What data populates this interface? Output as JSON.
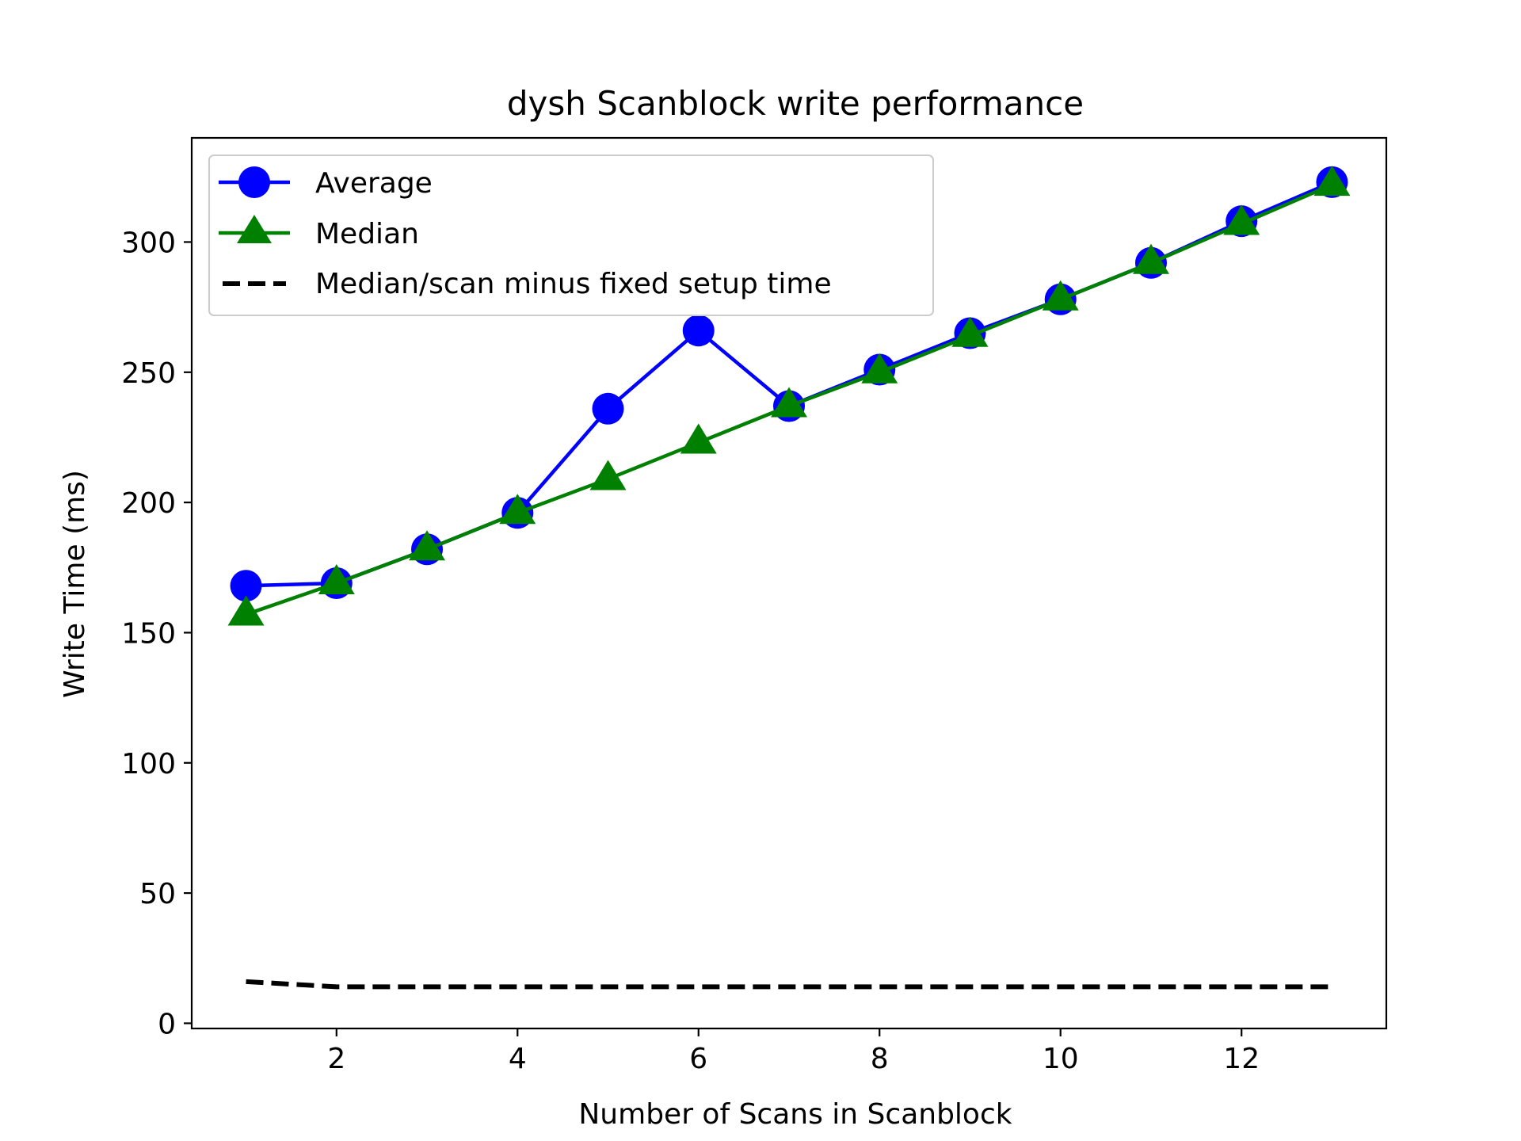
{
  "chart_data": {
    "type": "line",
    "title": "dysh Scanblock write performance",
    "xlabel": "Number of Scans in Scanblock",
    "ylabel": "Write Time (ms)",
    "xlim": [
      0.4,
      13.6
    ],
    "ylim": [
      -2,
      340
    ],
    "xticks": [
      2,
      4,
      6,
      8,
      10,
      12
    ],
    "yticks": [
      0,
      50,
      100,
      150,
      200,
      250,
      300
    ],
    "grid": false,
    "legend_position": "top-left",
    "x": [
      1,
      2,
      3,
      4,
      5,
      6,
      7,
      8,
      9,
      10,
      11,
      12,
      13
    ],
    "series": [
      {
        "name": "Average",
        "color": "#0000ff",
        "marker": "circle",
        "line_style": "solid",
        "values": [
          168,
          169,
          182,
          196,
          236,
          266,
          237,
          251,
          265,
          278,
          292,
          308,
          323
        ]
      },
      {
        "name": "Median",
        "color": "#008000",
        "marker": "triangle",
        "line_style": "solid",
        "values": [
          157,
          169,
          182,
          196,
          209,
          223,
          237,
          250,
          264,
          278,
          292,
          307,
          322
        ]
      },
      {
        "name": "Median/scan minus fixed setup time",
        "color": "#000000",
        "marker": "none",
        "line_style": "dashed",
        "values": [
          16,
          14,
          14,
          14,
          14,
          14,
          14,
          14,
          14,
          14,
          14,
          14,
          14
        ]
      }
    ]
  }
}
